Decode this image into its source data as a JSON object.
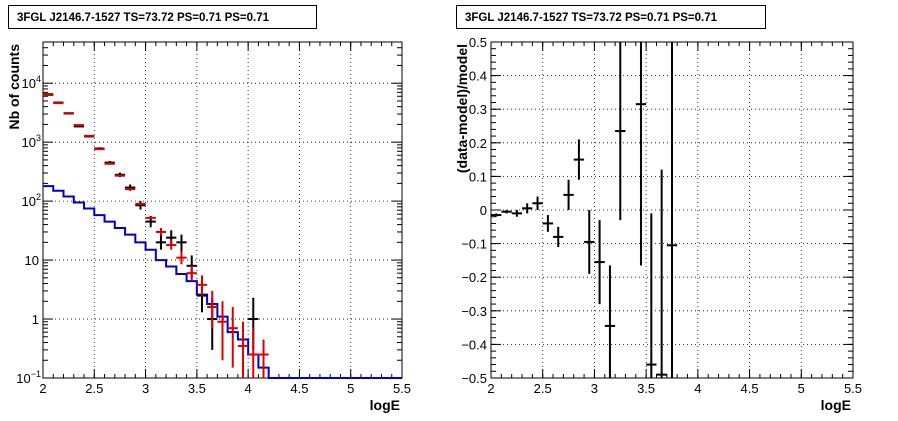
{
  "chart_data": [
    {
      "type": "line",
      "title": "3FGL J2146.7-1527 TS=73.72 PS=0.71 PS=0.71",
      "xlabel": "logE",
      "ylabel": "Nb of counts",
      "xlim": [
        2,
        5.5
      ],
      "ylim": [
        0.1,
        50000
      ],
      "yscale": "log",
      "grid": true,
      "x_ticks": [
        "2",
        "2.5",
        "3",
        "3.5",
        "4",
        "4.5",
        "5",
        "5.5"
      ],
      "y_ticks": [
        {
          "value": 0.1,
          "label": "10^{-1}",
          "base": "10",
          "exp": "−1"
        },
        {
          "value": 1,
          "label": "1",
          "base": "1",
          "exp": ""
        },
        {
          "value": 10,
          "label": "10",
          "base": "10",
          "exp": ""
        },
        {
          "value": 100,
          "label": "10^2",
          "base": "10",
          "exp": "2"
        },
        {
          "value": 1000,
          "label": "10^3",
          "base": "10",
          "exp": "3"
        },
        {
          "value": 10000,
          "label": "10^4",
          "base": "10",
          "exp": "4"
        }
      ],
      "series": [
        {
          "style": "step",
          "color": "#0000cc",
          "edges": [
            2.0,
            2.1,
            2.2,
            2.3,
            2.4,
            2.5,
            2.6,
            2.7,
            2.8,
            2.9,
            3.0,
            3.1,
            3.2,
            3.3,
            3.4,
            3.5,
            3.6,
            3.7,
            3.8,
            3.9,
            4.0,
            4.1,
            4.2,
            4.3,
            5.5
          ],
          "values": [
            180,
            150,
            120,
            95,
            75,
            58,
            45,
            35,
            27,
            20,
            15,
            10,
            7.8,
            5.8,
            4.4,
            2.6,
            1.8,
            1.1,
            0.6,
            0.45,
            0.25,
            0.15,
            0.1,
            0.1
          ]
        },
        {
          "style": "errorbar",
          "color": "#000000",
          "points": [
            {
              "x": 2.05,
              "y": 6500,
              "lo": 6500,
              "hi": 6500
            },
            {
              "x": 2.15,
              "y": 4700,
              "lo": 4700,
              "hi": 4700
            },
            {
              "x": 2.25,
              "y": 3100,
              "lo": 3100,
              "hi": 3100
            },
            {
              "x": 2.35,
              "y": 1850,
              "lo": 1850,
              "hi": 1850
            },
            {
              "x": 2.45,
              "y": 1250,
              "lo": 1250,
              "hi": 1250
            },
            {
              "x": 2.55,
              "y": 780,
              "lo": 740,
              "hi": 820
            },
            {
              "x": 2.65,
              "y": 450,
              "lo": 420,
              "hi": 480
            },
            {
              "x": 2.75,
              "y": 280,
              "lo": 255,
              "hi": 305
            },
            {
              "x": 2.85,
              "y": 170,
              "lo": 150,
              "hi": 192
            },
            {
              "x": 2.95,
              "y": 85,
              "lo": 72,
              "hi": 100
            },
            {
              "x": 3.05,
              "y": 45,
              "lo": 36,
              "hi": 56
            },
            {
              "x": 3.15,
              "y": 20,
              "lo": 15,
              "hi": 27
            },
            {
              "x": 3.25,
              "y": 24,
              "lo": 18,
              "hi": 32
            },
            {
              "x": 3.35,
              "y": 20,
              "lo": 14,
              "hi": 27
            },
            {
              "x": 3.45,
              "y": 8,
              "lo": 5,
              "hi": 12
            },
            {
              "x": 3.55,
              "y": 2.5,
              "lo": 1.3,
              "hi": 4.2
            },
            {
              "x": 3.65,
              "y": 1.0,
              "lo": 0.3,
              "hi": 2.3
            },
            {
              "x": 4.05,
              "y": 1.0,
              "lo": 0.3,
              "hi": 2.3
            }
          ]
        },
        {
          "style": "errorbar",
          "color": "#dd0000",
          "points": [
            {
              "x": 2.05,
              "y": 6300,
              "lo": 6300,
              "hi": 6300
            },
            {
              "x": 2.15,
              "y": 4600,
              "lo": 4600,
              "hi": 4600
            },
            {
              "x": 2.25,
              "y": 3050,
              "lo": 3050,
              "hi": 3050
            },
            {
              "x": 2.35,
              "y": 1950,
              "lo": 1950,
              "hi": 1950
            },
            {
              "x": 2.45,
              "y": 1280,
              "lo": 1280,
              "hi": 1280
            },
            {
              "x": 2.55,
              "y": 760,
              "lo": 760,
              "hi": 760
            },
            {
              "x": 2.65,
              "y": 430,
              "lo": 430,
              "hi": 430
            },
            {
              "x": 2.75,
              "y": 270,
              "lo": 270,
              "hi": 270
            },
            {
              "x": 2.85,
              "y": 160,
              "lo": 160,
              "hi": 160
            },
            {
              "x": 2.95,
              "y": 90,
              "lo": 90,
              "hi": 90
            },
            {
              "x": 3.05,
              "y": 52,
              "lo": 52,
              "hi": 52
            },
            {
              "x": 3.15,
              "y": 30,
              "lo": 26,
              "hi": 35
            },
            {
              "x": 3.25,
              "y": 18,
              "lo": 15,
              "hi": 22
            },
            {
              "x": 3.35,
              "y": 11,
              "lo": 8.5,
              "hi": 14
            },
            {
              "x": 3.45,
              "y": 6,
              "lo": 4.5,
              "hi": 8
            },
            {
              "x": 3.55,
              "y": 3.8,
              "lo": 2.5,
              "hi": 5.5
            },
            {
              "x": 3.65,
              "y": 1.6,
              "lo": 0.7,
              "hi": 3
            },
            {
              "x": 3.75,
              "y": 0.9,
              "lo": 0.2,
              "hi": 2.0
            },
            {
              "x": 3.85,
              "y": 0.7,
              "lo": 0.15,
              "hi": 1.6
            },
            {
              "x": 3.95,
              "y": 0.35,
              "lo": 0.1,
              "hi": 0.9
            },
            {
              "x": 4.05,
              "y": 0.25,
              "lo": 0.1,
              "hi": 0.7
            },
            {
              "x": 4.15,
              "y": 0.25,
              "lo": 0.1,
              "hi": 0.45
            }
          ]
        }
      ]
    },
    {
      "type": "scatter",
      "title": "3FGL J2146.7-1527 TS=73.72 PS=0.71 PS=0.71",
      "xlabel": "logE",
      "ylabel": "(data-model)/model",
      "xlim": [
        2,
        5.5
      ],
      "ylim": [
        -0.5,
        0.5
      ],
      "grid": true,
      "x_ticks": [
        "2",
        "2.5",
        "3",
        "3.5",
        "4",
        "4.5",
        "5",
        "5.5"
      ],
      "y_ticks": [
        "−0.5",
        "−0.4",
        "−0.3",
        "−0.2",
        "−0.1",
        "0",
        "0.1",
        "0.2",
        "0.3",
        "0.4",
        "0.5"
      ],
      "series": [
        {
          "style": "errorbar",
          "color": "#000000",
          "points": [
            {
              "x": 2.05,
              "y": -0.015,
              "lo": -0.02,
              "hi": -0.01
            },
            {
              "x": 2.15,
              "y": -0.005,
              "lo": -0.01,
              "hi": 0.0
            },
            {
              "x": 2.25,
              "y": -0.01,
              "lo": -0.02,
              "hi": 0.0
            },
            {
              "x": 2.35,
              "y": 0.005,
              "lo": -0.01,
              "hi": 0.02
            },
            {
              "x": 2.45,
              "y": 0.02,
              "lo": 0.0,
              "hi": 0.04
            },
            {
              "x": 2.55,
              "y": -0.04,
              "lo": -0.065,
              "hi": -0.015
            },
            {
              "x": 2.65,
              "y": -0.08,
              "lo": -0.11,
              "hi": -0.05
            },
            {
              "x": 2.75,
              "y": 0.045,
              "lo": 0.0,
              "hi": 0.09
            },
            {
              "x": 2.85,
              "y": 0.15,
              "lo": 0.09,
              "hi": 0.21
            },
            {
              "x": 2.95,
              "y": -0.095,
              "lo": -0.19,
              "hi": 0.0
            },
            {
              "x": 3.05,
              "y": -0.155,
              "lo": -0.28,
              "hi": -0.03
            },
            {
              "x": 3.15,
              "y": -0.345,
              "lo": -0.5,
              "hi": -0.165
            },
            {
              "x": 3.25,
              "y": 0.235,
              "lo": -0.03,
              "hi": 0.5
            },
            {
              "x": 3.45,
              "y": 0.315,
              "lo": -0.165,
              "hi": 0.5
            },
            {
              "x": 3.55,
              "y": -0.46,
              "lo": -0.5,
              "hi": -0.01
            },
            {
              "x": 3.65,
              "y": -0.49,
              "lo": -0.5,
              "hi": 0.12
            },
            {
              "x": 3.75,
              "y": -0.105,
              "lo": -0.5,
              "hi": 0.5
            }
          ]
        }
      ]
    }
  ]
}
